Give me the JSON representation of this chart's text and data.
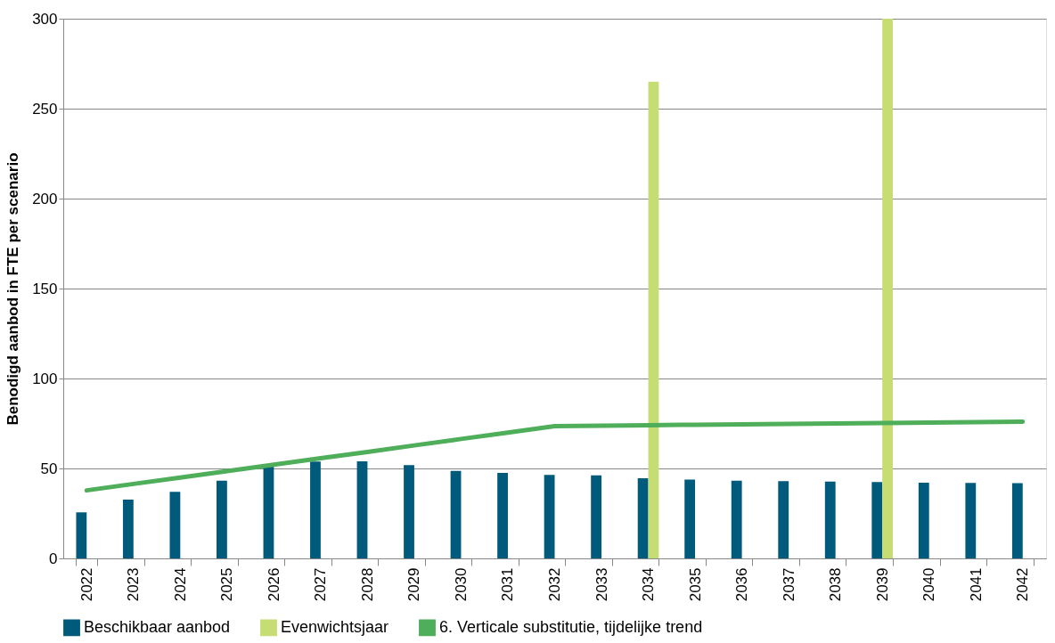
{
  "chart_data": {
    "type": "bar",
    "ylabel": "Benodigd aanbod in FTE per scenario",
    "categories": [
      "2022",
      "2023",
      "2024",
      "2025",
      "2026",
      "2027",
      "2028",
      "2029",
      "2030",
      "2031",
      "2032",
      "2033",
      "2034",
      "2035",
      "2036",
      "2037",
      "2038",
      "2039",
      "2040",
      "2041",
      "2042"
    ],
    "series": [
      {
        "name": "Beschikbaar aanbod",
        "color": "#005a7c",
        "values": [
          25.6,
          32.7,
          37,
          43.2,
          52.5,
          53.8,
          54,
          51.9,
          48.6,
          47.5,
          46.4,
          46.2,
          44.5,
          43.8,
          43.2,
          43,
          42.7,
          42.5,
          42.1,
          42,
          41.8
        ]
      },
      {
        "name": "Evenwichtsjaar",
        "color": "#c6dd73",
        "values": [
          null,
          null,
          null,
          null,
          null,
          null,
          null,
          null,
          null,
          null,
          null,
          null,
          265,
          null,
          null,
          null,
          null,
          300,
          null,
          null,
          null
        ]
      },
      {
        "name": "6. Verticale substitutie, tijdelijke trend",
        "type": "line",
        "color": "#4eae5a",
        "values": [
          37.8,
          41.4,
          44.9,
          48.5,
          52.1,
          55.7,
          59.2,
          62.8,
          66.4,
          69.9,
          73.5,
          73.8,
          74,
          74.3,
          74.5,
          74.8,
          75,
          75.3,
          75.5,
          75.8,
          76
        ]
      }
    ],
    "ylim": [
      0,
      300
    ],
    "yticks": [
      0,
      50,
      100,
      150,
      200,
      250,
      300
    ],
    "grid": "y",
    "legend": "bottom"
  }
}
